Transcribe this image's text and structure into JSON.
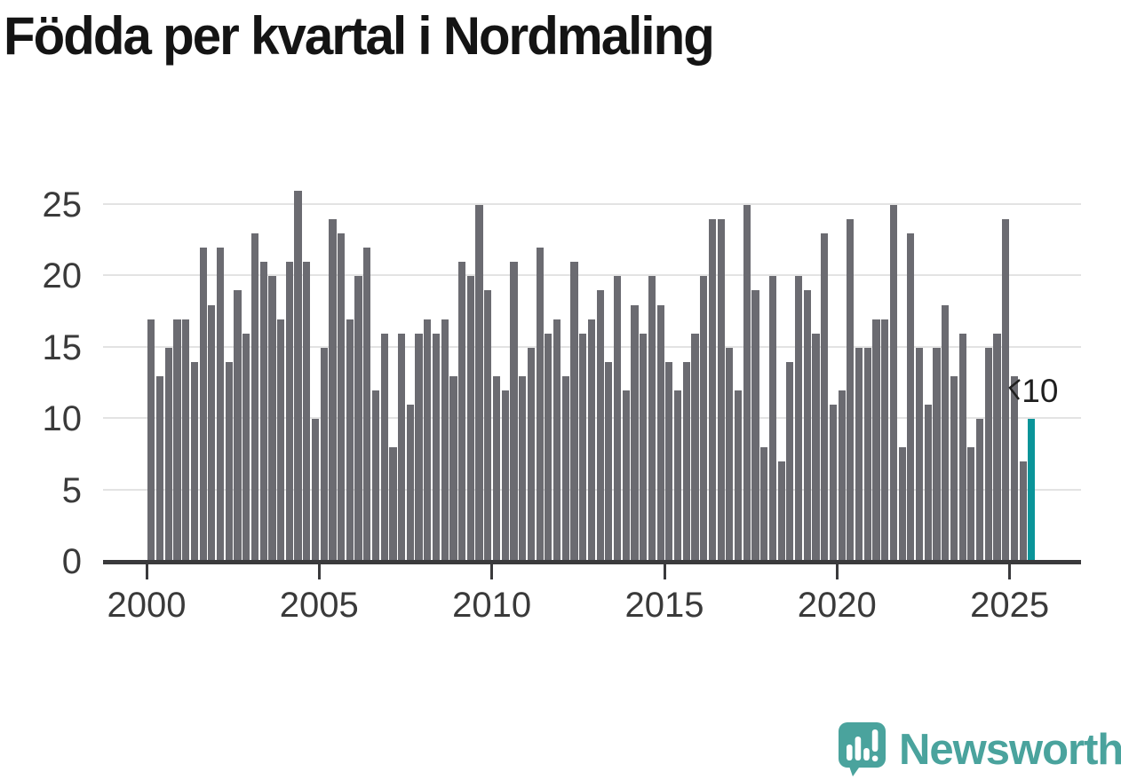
{
  "title": "Födda per kvartal i Nordmaling",
  "annotation": {
    "latest_value_label": "10"
  },
  "logo": {
    "text": "Newsworthy"
  },
  "colors": {
    "bar": "#6B6B71",
    "highlight": "#0A9499",
    "gridline": "#E3E3E3",
    "axis": "#3A3A3C",
    "labels": "#3A3A3A",
    "title": "#141414",
    "logo": "#4AA39D"
  },
  "chart_data": {
    "type": "bar",
    "title": "Födda per kvartal i Nordmaling",
    "xlabel": "",
    "ylabel": "",
    "ylim": [
      0,
      26
    ],
    "grid": "horizontal",
    "y_ticks": [
      0,
      5,
      10,
      15,
      20,
      25
    ],
    "x_ticks": [
      2000,
      2005,
      2010,
      2015,
      2020,
      2025
    ],
    "unit": "births per quarter",
    "highlight_last": true,
    "highlight_label": "10",
    "quarters": [
      {
        "year": 2000,
        "values": [
          17,
          13,
          15,
          17
        ]
      },
      {
        "year": 2001,
        "values": [
          17,
          14,
          22,
          18
        ]
      },
      {
        "year": 2002,
        "values": [
          22,
          14,
          19,
          16
        ]
      },
      {
        "year": 2003,
        "values": [
          23,
          21,
          20,
          17
        ]
      },
      {
        "year": 2004,
        "values": [
          21,
          26,
          21,
          10
        ]
      },
      {
        "year": 2005,
        "values": [
          15,
          24,
          23,
          17
        ]
      },
      {
        "year": 2006,
        "values": [
          20,
          22,
          12,
          16
        ]
      },
      {
        "year": 2007,
        "values": [
          8,
          16,
          11,
          16
        ]
      },
      {
        "year": 2008,
        "values": [
          17,
          16,
          17,
          13
        ]
      },
      {
        "year": 2009,
        "values": [
          21,
          20,
          25,
          19
        ]
      },
      {
        "year": 2010,
        "values": [
          13,
          12,
          21,
          13
        ]
      },
      {
        "year": 2011,
        "values": [
          15,
          22,
          16,
          17
        ]
      },
      {
        "year": 2012,
        "values": [
          13,
          21,
          16,
          17
        ]
      },
      {
        "year": 2013,
        "values": [
          19,
          14,
          20,
          12
        ]
      },
      {
        "year": 2014,
        "values": [
          18,
          16,
          20,
          18
        ]
      },
      {
        "year": 2015,
        "values": [
          14,
          12,
          14,
          16
        ]
      },
      {
        "year": 2016,
        "values": [
          20,
          24,
          24,
          15
        ]
      },
      {
        "year": 2017,
        "values": [
          12,
          25,
          19,
          8
        ]
      },
      {
        "year": 2018,
        "values": [
          20,
          7,
          14,
          20
        ]
      },
      {
        "year": 2019,
        "values": [
          19,
          16,
          23,
          11
        ]
      },
      {
        "year": 2020,
        "values": [
          12,
          24,
          15,
          15
        ]
      },
      {
        "year": 2021,
        "values": [
          17,
          17,
          25,
          8
        ]
      },
      {
        "year": 2022,
        "values": [
          23,
          15,
          11,
          15
        ]
      },
      {
        "year": 2023,
        "values": [
          18,
          13,
          16,
          8
        ]
      },
      {
        "year": 2024,
        "values": [
          10,
          15,
          16,
          24
        ]
      },
      {
        "year": 2025,
        "values": [
          13,
          7,
          10
        ]
      }
    ]
  }
}
